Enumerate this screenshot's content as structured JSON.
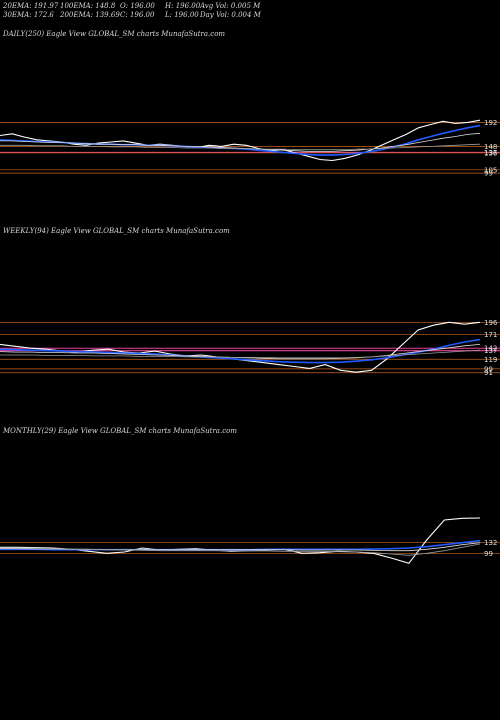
{
  "header": {
    "row1": [
      {
        "id": "ema20",
        "text": "20EMA: 191.97"
      },
      {
        "id": "ema100",
        "text": "100EMA: 148.8"
      },
      {
        "id": "open",
        "text": "O: 196.00"
      },
      {
        "id": "high",
        "text": "H: 196.00"
      },
      {
        "id": "avgvol",
        "text": "Avg Vol: 0.005 M"
      }
    ],
    "row2": [
      {
        "id": "ema30",
        "text": "30EMA: 172.6"
      },
      {
        "id": "ema200",
        "text": "200EMA: 139.69"
      },
      {
        "id": "close",
        "text": "C: 196.00"
      },
      {
        "id": "low",
        "text": "L: 196.00"
      },
      {
        "id": "dayvol",
        "text": "Day Vol: 0.004 M"
      }
    ]
  },
  "colors": {
    "background": "#000000",
    "price": "#ffffff",
    "ema_blue": "#1f5bff",
    "ema_white": "#dddddd",
    "ema_gray": "#9a9a9a",
    "level_orange": "#c8661e",
    "level_pink": "#e8409a"
  },
  "chart_data": [
    {
      "type": "line",
      "title": "DAILY(250) Eagle   View  GLOBAL_SM charts MunafaSutra.com",
      "yticks": [
        "192",
        "148",
        "137",
        "136",
        "105",
        "99"
      ],
      "series": [
        {
          "role": "price",
          "values": [
            168,
            171,
            165,
            160,
            158,
            156,
            152,
            150,
            154,
            156,
            158,
            154,
            150,
            152,
            150,
            148,
            146,
            150,
            148,
            152,
            150,
            144,
            140,
            142,
            136,
            130,
            124,
            122,
            126,
            132,
            140,
            150,
            160,
            170,
            182,
            188,
            194,
            190,
            192,
            196
          ]
        },
        {
          "role": "ema_blue",
          "values": [
            160,
            159,
            158,
            157,
            156,
            155,
            154,
            153,
            152,
            152,
            151,
            151,
            150,
            150,
            149,
            148,
            147,
            146,
            145,
            144,
            143,
            141,
            139,
            137,
            135,
            133,
            132,
            132,
            133,
            135,
            138,
            142,
            147,
            153,
            160,
            166,
            172,
            177,
            182,
            186
          ]
        },
        {
          "role": "ema_white",
          "values": [
            158,
            158,
            157,
            156,
            155,
            155,
            154,
            153,
            152,
            152,
            151,
            151,
            150,
            150,
            149,
            148,
            148,
            147,
            146,
            145,
            144,
            143,
            142,
            141,
            140,
            139,
            139,
            139,
            140,
            141,
            143,
            145,
            148,
            151,
            155,
            159,
            163,
            166,
            170,
            172
          ]
        },
        {
          "role": "ema_gray",
          "values": [
            150,
            150,
            150,
            149,
            149,
            149,
            148,
            148,
            148,
            147,
            147,
            147,
            146,
            146,
            146,
            145,
            145,
            145,
            144,
            144,
            144,
            143,
            143,
            143,
            142,
            142,
            142,
            142,
            142,
            143,
            143,
            144,
            145,
            146,
            147,
            148,
            149,
            150,
            151,
            152
          ]
        }
      ],
      "levels": [
        {
          "value": 192,
          "color": "orange"
        },
        {
          "value": 148,
          "color": "orange"
        },
        {
          "value": 137,
          "color": "pink"
        },
        {
          "value": 136,
          "color": "orange"
        },
        {
          "value": 105,
          "color": "orange"
        },
        {
          "value": 99,
          "color": "orange"
        }
      ],
      "ylim": [
        90,
        200
      ]
    },
    {
      "type": "line",
      "title": "WEEKLY(94) Eagle   View  GLOBAL_SM charts MunafaSutra.com",
      "yticks": [
        "196",
        "171",
        "142",
        "137",
        "119",
        "99",
        "91"
      ],
      "series": [
        {
          "role": "price",
          "values": [
            150,
            146,
            142,
            140,
            136,
            134,
            138,
            140,
            134,
            132,
            136,
            130,
            126,
            128,
            124,
            120,
            116,
            112,
            108,
            104,
            100,
            108,
            96,
            92,
            96,
            120,
            150,
            180,
            190,
            196,
            192,
            196
          ]
        },
        {
          "role": "ema_blue",
          "values": [
            140,
            139,
            138,
            137,
            136,
            135,
            134,
            133,
            132,
            131,
            130,
            128,
            126,
            124,
            122,
            120,
            118,
            116,
            114,
            113,
            112,
            112,
            113,
            115,
            118,
            122,
            128,
            134,
            140,
            148,
            155,
            160
          ]
        },
        {
          "role": "ema_white",
          "values": [
            135,
            134,
            134,
            133,
            133,
            132,
            132,
            131,
            130,
            129,
            128,
            127,
            126,
            125,
            124,
            123,
            122,
            121,
            120,
            120,
            120,
            120,
            121,
            122,
            124,
            127,
            131,
            135,
            139,
            143,
            147,
            150
          ]
        },
        {
          "role": "ema_gray",
          "values": [
            128,
            128,
            128,
            127,
            127,
            127,
            126,
            126,
            126,
            125,
            125,
            125,
            124,
            124,
            124,
            123,
            123,
            123,
            122,
            122,
            122,
            122,
            122,
            123,
            124,
            126,
            128,
            130,
            132,
            134,
            136,
            138
          ]
        }
      ],
      "levels": [
        {
          "value": 196,
          "color": "orange"
        },
        {
          "value": 171,
          "color": "orange"
        },
        {
          "value": 142,
          "color": "pink"
        },
        {
          "value": 137,
          "color": "pink"
        },
        {
          "value": 119,
          "color": "orange"
        },
        {
          "value": 99,
          "color": "orange"
        },
        {
          "value": 91,
          "color": "orange"
        }
      ],
      "ylim": [
        80,
        205
      ]
    },
    {
      "type": "line",
      "title": "MONTHLY(29) Eagle   View  GLOBAL_SM charts MunafaSutra.com",
      "yticks": [
        "132",
        "99"
      ],
      "series": [
        {
          "role": "price",
          "values": [
            118,
            118,
            117,
            116,
            112,
            106,
            100,
            104,
            116,
            110,
            112,
            114,
            110,
            106,
            108,
            110,
            112,
            100,
            102,
            106,
            104,
            100,
            86,
            70,
            140,
            200,
            205,
            206
          ]
        },
        {
          "role": "ema_blue",
          "values": [
            112,
            112,
            112,
            111,
            111,
            111,
            111,
            111,
            111,
            111,
            111,
            111,
            111,
            111,
            111,
            112,
            112,
            112,
            112,
            112,
            112,
            113,
            114,
            116,
            120,
            126,
            132,
            138
          ]
        },
        {
          "role": "ema_white",
          "values": [
            114,
            114,
            113,
            113,
            112,
            112,
            111,
            111,
            111,
            111,
            111,
            111,
            111,
            111,
            111,
            111,
            111,
            110,
            110,
            110,
            110,
            109,
            108,
            108,
            112,
            118,
            126,
            132
          ]
        },
        {
          "role": "ema_gray",
          "values": [
            116,
            116,
            115,
            114,
            113,
            112,
            111,
            110,
            109,
            108,
            108,
            108,
            108,
            107,
            107,
            107,
            106,
            106,
            106,
            105,
            104,
            102,
            98,
            94,
            100,
            108,
            118,
            128
          ]
        }
      ],
      "levels": [
        {
          "value": 132,
          "color": "orange"
        },
        {
          "value": 99,
          "color": "orange"
        }
      ],
      "ylim": [
        50,
        230
      ]
    }
  ]
}
